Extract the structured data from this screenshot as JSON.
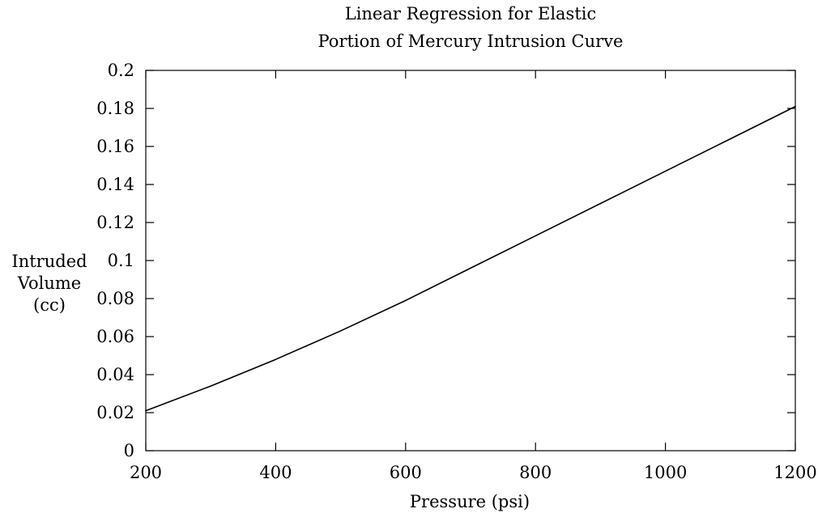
{
  "chart_data": {
    "type": "line",
    "title": [
      "Linear Regression for Elastic",
      "Portion of Mercury Intrusion Curve"
    ],
    "xlabel": "Pressure (psi)",
    "ylabel": [
      "Intruded",
      "Volume",
      "(cc)"
    ],
    "xlim": [
      200,
      1200
    ],
    "ylim": [
      0,
      0.2
    ],
    "x_ticks": [
      200,
      400,
      600,
      800,
      1000,
      1200
    ],
    "y_ticks": [
      0,
      0.02,
      0.04,
      0.06,
      0.08,
      0.1,
      0.12,
      0.14,
      0.16,
      0.18,
      0.2
    ],
    "x_tick_labels": [
      "200",
      "400",
      "600",
      "800",
      "1000",
      "1200"
    ],
    "y_tick_labels": [
      "0",
      "0.02",
      "0.04",
      "0.06",
      "0.08",
      "0.1",
      "0.12",
      "0.14",
      "0.16",
      "0.18",
      "0.2"
    ],
    "grid": false,
    "legend": "none",
    "series": [
      {
        "color": "#000000",
        "x": [
          200,
          300,
          400,
          500,
          600,
          700,
          800,
          900,
          1000,
          1100,
          1200
        ],
        "y": [
          0.021,
          0.034,
          0.048,
          0.063,
          0.079,
          0.096,
          0.113,
          0.13,
          0.147,
          0.164,
          0.181
        ]
      }
    ]
  }
}
